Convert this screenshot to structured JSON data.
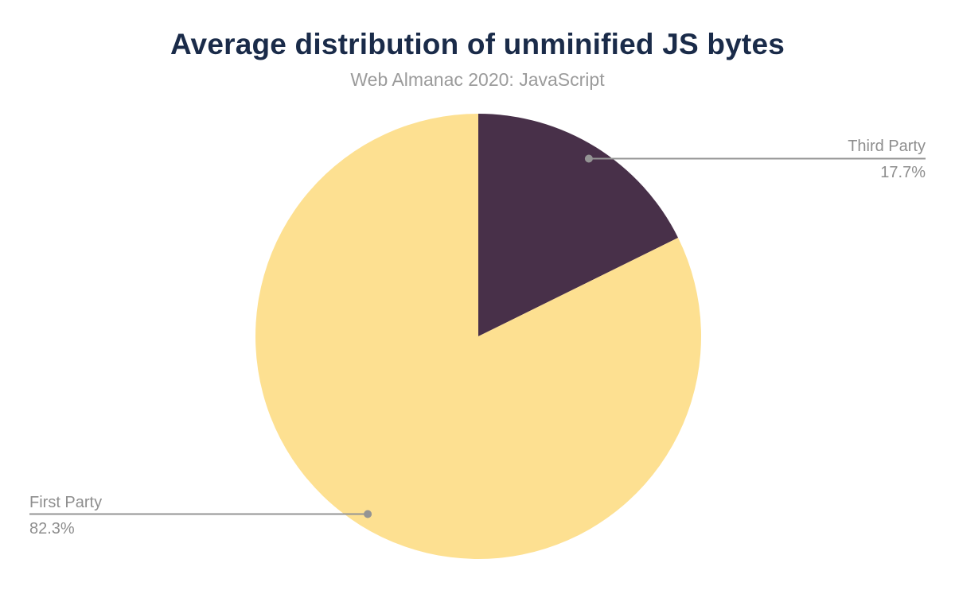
{
  "chart_data": {
    "type": "pie",
    "title": "Average distribution of unminified JS bytes",
    "subtitle": "Web Almanac 2020: JavaScript",
    "slices": [
      {
        "label": "Third Party",
        "value": 17.7,
        "display": "17.7%",
        "color": "#483049"
      },
      {
        "label": "First Party",
        "value": 82.3,
        "display": "82.3%",
        "color": "#fde091"
      }
    ],
    "start_angle_deg": 0,
    "direction": "clockwise",
    "legend_position": "none",
    "colors": {
      "title": "#1a2b49",
      "subtitle": "#9b9b9b",
      "label_text": "#8e8e8e",
      "leader_line": "#949494",
      "leader_dot": "#949494",
      "background": "#ffffff"
    }
  }
}
